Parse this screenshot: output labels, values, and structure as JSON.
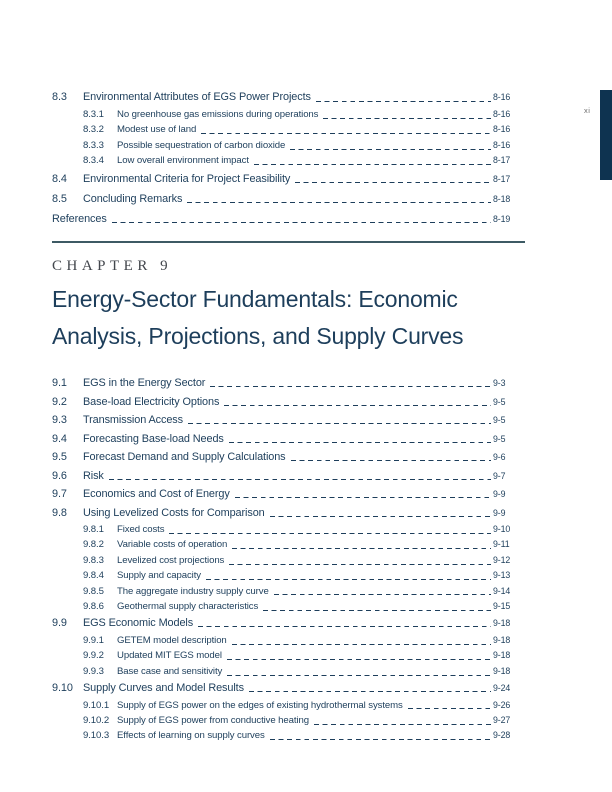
{
  "page": {
    "folio": "xi"
  },
  "colors": {
    "text_navy": "#1d3e5b",
    "eyebrow_gray": "#43474d",
    "rule": "#3d5a64",
    "side_tab": "#0e3350",
    "folio_gray": "#6e6e6e"
  },
  "chapter": {
    "eyebrow": "CHAPTER 9",
    "title": "Energy-Sector Fundamentals: Economic Analysis, Projections, and Supply Curves"
  },
  "toc_top": {
    "entries": [
      {
        "num": "8.3",
        "label": "Environmental Attributes of EGS Power Projects",
        "page": "8-16",
        "level": 1
      },
      {
        "num": "8.3.1",
        "label": "No greenhouse gas emissions during operations",
        "page": "8-16",
        "level": 2
      },
      {
        "num": "8.3.2",
        "label": "Modest use of land",
        "page": "8-16",
        "level": 2
      },
      {
        "num": "8.3.3",
        "label": "Possible sequestration of carbon dioxide",
        "page": "8-16",
        "level": 2
      },
      {
        "num": "8.3.4",
        "label": "Low overall environment impact",
        "page": "8-17",
        "level": 2
      },
      {
        "num": "8.4",
        "label": "Environmental Criteria for Project Feasibility",
        "page": "8-17",
        "level": 1
      },
      {
        "num": "8.5",
        "label": "Concluding Remarks",
        "page": "8-18",
        "level": 1
      },
      {
        "num": "",
        "label": "References",
        "page": "8-19",
        "level": 1
      }
    ]
  },
  "toc_chapter": {
    "entries": [
      {
        "num": "9.1",
        "label": "EGS in the Energy Sector",
        "page": "9-3",
        "level": 1
      },
      {
        "num": "9.2",
        "label": "Base-load Electricity Options",
        "page": "9-5",
        "level": 1
      },
      {
        "num": "9.3",
        "label": "Transmission Access",
        "page": "9-5",
        "level": 1
      },
      {
        "num": "9.4",
        "label": "Forecasting Base-load Needs",
        "page": "9-5",
        "level": 1
      },
      {
        "num": "9.5",
        "label": "Forecast Demand and Supply Calculations",
        "page": "9-6",
        "level": 1
      },
      {
        "num": "9.6",
        "label": "Risk",
        "page": "9-7",
        "level": 1
      },
      {
        "num": "9.7",
        "label": "Economics and Cost of Energy",
        "page": "9-9",
        "level": 1
      },
      {
        "num": "9.8",
        "label": "Using Levelized Costs for Comparison",
        "page": "9-9",
        "level": 1
      },
      {
        "num": "9.8.1",
        "label": "Fixed costs",
        "page": "9-10",
        "level": 2
      },
      {
        "num": "9.8.2",
        "label": "Variable costs of operation",
        "page": "9-11",
        "level": 2
      },
      {
        "num": "9.8.3",
        "label": "Levelized cost projections",
        "page": "9-12",
        "level": 2
      },
      {
        "num": "9.8.4",
        "label": "Supply and capacity",
        "page": "9-13",
        "level": 2
      },
      {
        "num": "9.8.5",
        "label": "The aggregate industry supply curve",
        "page": "9-14",
        "level": 2
      },
      {
        "num": "9.8.6",
        "label": "Geothermal supply characteristics",
        "page": "9-15",
        "level": 2
      },
      {
        "num": "9.9",
        "label": "EGS Economic Models",
        "page": "9-18",
        "level": 1
      },
      {
        "num": "9.9.1",
        "label": "GETEM model description",
        "page": "9-18",
        "level": 2
      },
      {
        "num": "9.9.2",
        "label": "Updated MIT EGS model",
        "page": "9-18",
        "level": 2
      },
      {
        "num": "9.9.3",
        "label": "Base case and sensitivity",
        "page": "9-18",
        "level": 2
      },
      {
        "num": "9.10",
        "label": "Supply Curves and Model Results",
        "page": "9-24",
        "level": 1
      },
      {
        "num": "9.10.1",
        "label": "Supply of EGS power on the edges of existing hydrothermal systems",
        "page": "9-26",
        "level": 2
      },
      {
        "num": "9.10.2",
        "label": "Supply of EGS power from conductive heating",
        "page": "9-27",
        "level": 2
      },
      {
        "num": "9.10.3",
        "label": "Effects of learning on supply curves",
        "page": "9-28",
        "level": 2
      }
    ]
  }
}
